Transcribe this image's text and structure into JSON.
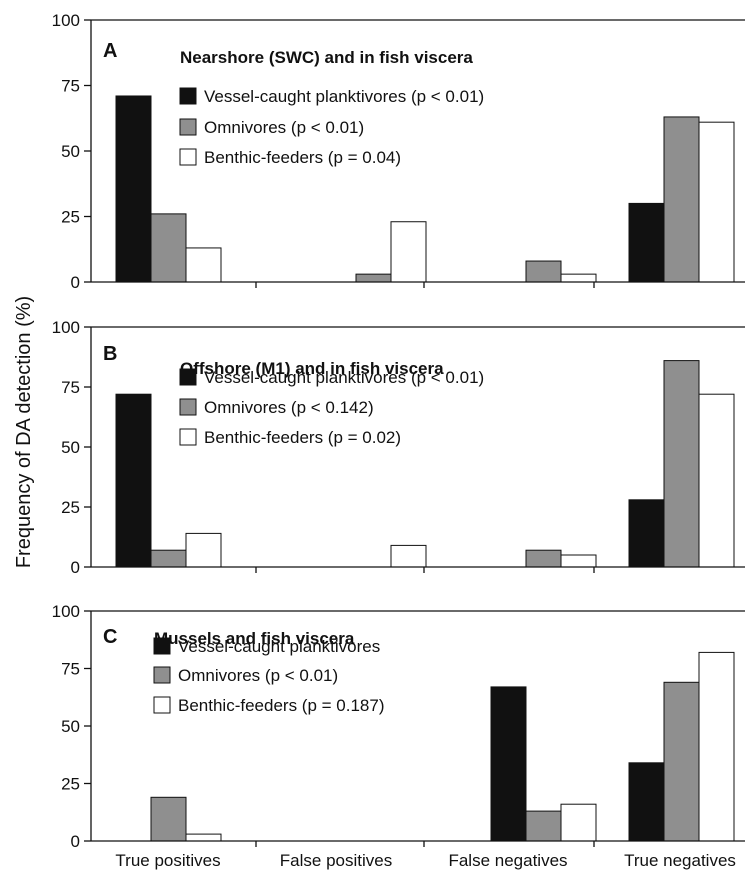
{
  "chart_data": {
    "type": "bar",
    "ylabel": "Frequency of DA detection (%)",
    "categories": [
      "True positives",
      "False positives",
      "False negatives",
      "True negatives"
    ],
    "ylim": [
      0,
      100
    ],
    "yticks": [
      "0",
      "25",
      "50",
      "75",
      "100"
    ],
    "colors": {
      "Vessel-caught planktivores": "#111111",
      "Omnivores": "#8f8f8f",
      "Benthic-feeders": "#ffffff"
    },
    "panels": [
      {
        "letter": "A",
        "title": "Nearshore (SWC) and in fish viscera",
        "series": [
          {
            "name": "Vessel-caught planktivores",
            "legend": "Vessel-caught planktivores (p < 0.01)",
            "values": [
              71,
              0,
              0,
              30
            ]
          },
          {
            "name": "Omnivores",
            "legend": "Omnivores (p < 0.01)",
            "values": [
              26,
              3,
              8,
              63
            ]
          },
          {
            "name": "Benthic-feeders",
            "legend": "Benthic-feeders (p = 0.04)",
            "values": [
              13,
              23,
              3,
              61
            ]
          }
        ]
      },
      {
        "letter": "B",
        "title": "Offshore (M1) and in fish viscera",
        "series": [
          {
            "name": "Vessel-caught planktivores",
            "legend": "Vessel-caught planktivores (p < 0.01)",
            "values": [
              72,
              0,
              0,
              28
            ]
          },
          {
            "name": "Omnivores",
            "legend": "Omnivores (p < 0.142)",
            "values": [
              7,
              0,
              7,
              86
            ]
          },
          {
            "name": "Benthic-feeders",
            "legend": "Benthic-feeders (p = 0.02)",
            "values": [
              14,
              9,
              5,
              72
            ]
          }
        ]
      },
      {
        "letter": "C",
        "title": "Mussels and fish viscera",
        "series": [
          {
            "name": "Vessel-caught planktivores",
            "legend": "Vessel-caught planktivores",
            "values": [
              0,
              0,
              67,
              34
            ]
          },
          {
            "name": "Omnivores",
            "legend": "Omnivores (p < 0.01)",
            "values": [
              19,
              0,
              13,
              69
            ]
          },
          {
            "name": "Benthic-feeders",
            "legend": "Benthic-feeders (p = 0.187)",
            "values": [
              3,
              0,
              16,
              82
            ]
          }
        ]
      }
    ]
  }
}
